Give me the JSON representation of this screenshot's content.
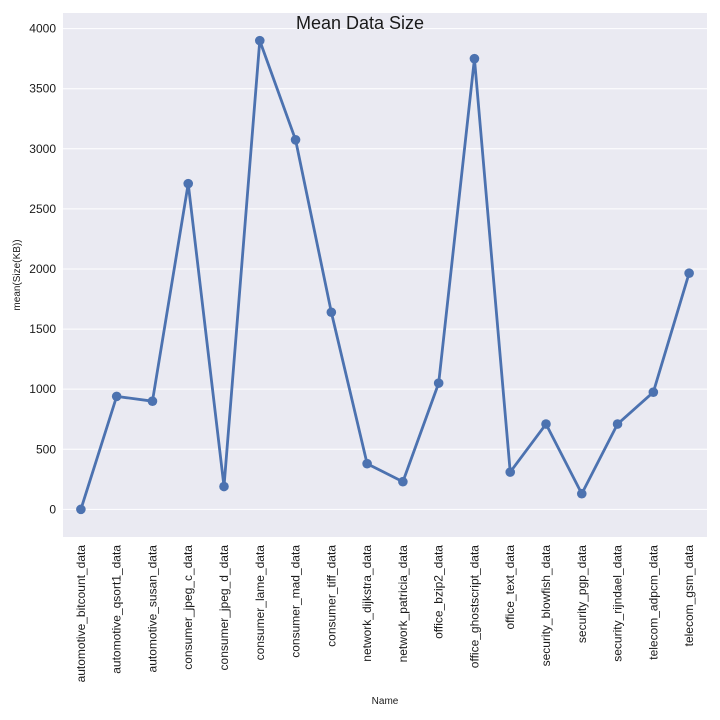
{
  "chart_data": {
    "type": "line",
    "title": "Mean Data Size",
    "xlabel": "Name",
    "ylabel": "mean(Size(KB))",
    "categories": [
      "automotive_bitcount_data",
      "automotive_qsort1_data",
      "automotive_susan_data",
      "consumer_jpeg_c_data",
      "consumer_jpeg_d_data",
      "consumer_lame_data",
      "consumer_mad_data",
      "consumer_tiff_data",
      "network_dijkstra_data",
      "network_patricia_data",
      "office_bzip2_data",
      "office_ghostscript_data",
      "office_text_data",
      "security_blowfish_data",
      "security_pgp_data",
      "security_rijndael_data",
      "telecom_adpcm_data",
      "telecom_gsm_data"
    ],
    "values": [
      0,
      940,
      900,
      2710,
      190,
      3900,
      3075,
      1640,
      380,
      230,
      1050,
      3750,
      310,
      710,
      130,
      710,
      975,
      1965
    ],
    "yticks": [
      0,
      500,
      1000,
      1500,
      2000,
      2500,
      3000,
      3500,
      4000
    ],
    "ylim": [
      -230,
      4130
    ],
    "grid": true,
    "colors": {
      "line": "#4c72b0",
      "background": "#eaeaf2",
      "grid": "#ffffff"
    }
  }
}
